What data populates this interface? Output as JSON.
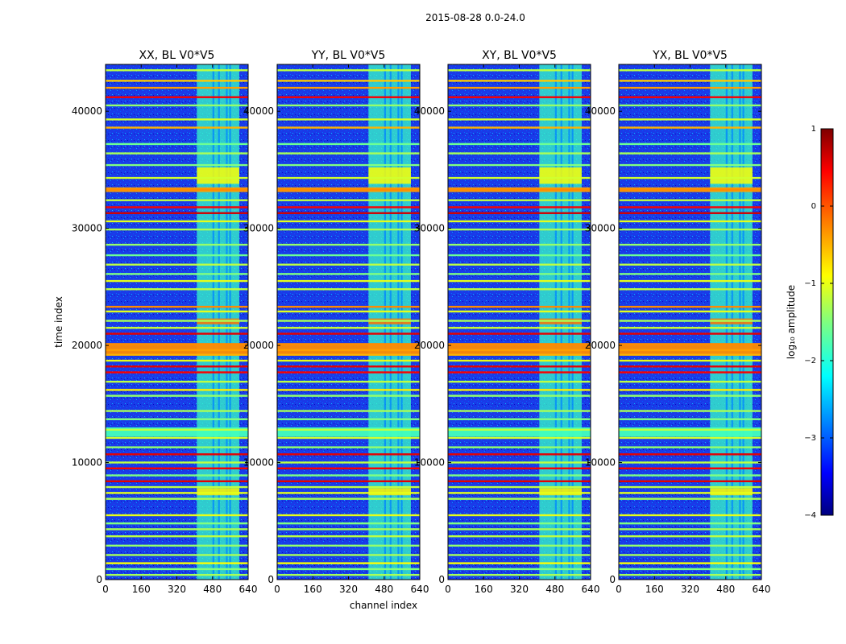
{
  "figure": {
    "suptitle": "2015-08-28 0.0-24.0"
  },
  "chart_data": {
    "type": "heatmap",
    "title": "2015-08-28 0.0-24.0",
    "xlabel": "channel index",
    "ylabel": "time index",
    "xlim": [
      0,
      640
    ],
    "ylim": [
      0,
      44000
    ],
    "xticks": [
      "0",
      "160",
      "320",
      "480",
      "640"
    ],
    "yticks": [
      "0",
      "10000",
      "20000",
      "30000",
      "40000"
    ],
    "panels": [
      {
        "title": "XX, BL V0*V5"
      },
      {
        "title": "YY, BL V0*V5"
      },
      {
        "title": "XY, BL V0*V5"
      },
      {
        "title": "YX, BL V0*V5"
      }
    ],
    "colorbar": {
      "label": "log₁₀ amplitude",
      "range": [
        -4,
        1
      ],
      "ticks": [
        "1",
        "0",
        "−1",
        "−2",
        "−3",
        "−4"
      ],
      "colormap": "jet"
    },
    "background_log_amp": -3.1,
    "rfi_channel_band": [
      410,
      600
    ],
    "rfi_gap_channels": [
      480,
      505,
      540,
      555
    ],
    "flagged_time_rows": [
      {
        "t": 43500,
        "v": -1.2
      },
      {
        "t": 42600,
        "v": -0.6
      },
      {
        "t": 42000,
        "v": -0.4
      },
      {
        "t": 41200,
        "v": 0.4
      },
      {
        "t": 40500,
        "v": -1.4
      },
      {
        "t": 39300,
        "v": -1.1
      },
      {
        "t": 38600,
        "v": -0.5
      },
      {
        "t": 37200,
        "v": -1.6
      },
      {
        "t": 36400,
        "v": -1.3
      },
      {
        "t": 35400,
        "v": -1.5
      },
      {
        "t": 34300,
        "v": -1.1
      },
      {
        "t": 33300,
        "v": -0.3
      },
      {
        "t": 32400,
        "v": -1.2
      },
      {
        "t": 31800,
        "v": 0.4
      },
      {
        "t": 31300,
        "v": 0.6
      },
      {
        "t": 30600,
        "v": -1.0
      },
      {
        "t": 29900,
        "v": -1.3
      },
      {
        "t": 28600,
        "v": -1.4
      },
      {
        "t": 27700,
        "v": -1.6
      },
      {
        "t": 26900,
        "v": -1.2
      },
      {
        "t": 26100,
        "v": -1.5
      },
      {
        "t": 25500,
        "v": -1.0
      },
      {
        "t": 24800,
        "v": -1.2
      },
      {
        "t": 23300,
        "v": -0.3
      },
      {
        "t": 22900,
        "v": -1.0
      },
      {
        "t": 22100,
        "v": -1.3
      },
      {
        "t": 21500,
        "v": -1.1
      },
      {
        "t": 21000,
        "v": 0.5
      },
      {
        "t": 20100,
        "v": -0.3
      },
      {
        "t": 19600,
        "v": -0.4
      },
      {
        "t": 19200,
        "v": -0.5
      },
      {
        "t": 18700,
        "v": -1.0
      },
      {
        "t": 18200,
        "v": 0.5
      },
      {
        "t": 17700,
        "v": 0.4
      },
      {
        "t": 16900,
        "v": -1.2
      },
      {
        "t": 16200,
        "v": -0.8
      },
      {
        "t": 15700,
        "v": -1.4
      },
      {
        "t": 14400,
        "v": -1.3
      },
      {
        "t": 13700,
        "v": -1.5
      },
      {
        "t": 12800,
        "v": -1.2
      },
      {
        "t": 12100,
        "v": -1.1
      },
      {
        "t": 11300,
        "v": -1.4
      },
      {
        "t": 10700,
        "v": 0.5
      },
      {
        "t": 10000,
        "v": -1.2
      },
      {
        "t": 9500,
        "v": 0.4
      },
      {
        "t": 8900,
        "v": -1.5
      },
      {
        "t": 8400,
        "v": 0.5
      },
      {
        "t": 7900,
        "v": -1.2
      },
      {
        "t": 7400,
        "v": -1.0
      },
      {
        "t": 6900,
        "v": -1.3
      },
      {
        "t": 5500,
        "v": -1.0
      },
      {
        "t": 4800,
        "v": -1.5
      },
      {
        "t": 4300,
        "v": -1.3
      },
      {
        "t": 3700,
        "v": -1.2
      },
      {
        "t": 2900,
        "v": -1.4
      },
      {
        "t": 2100,
        "v": -1.3
      },
      {
        "t": 1400,
        "v": -0.9
      },
      {
        "t": 900,
        "v": -1.5
      },
      {
        "t": 400,
        "v": -1.3
      }
    ],
    "wide_flag_bands": [
      {
        "t0": 19200,
        "t1": 20200,
        "v": -0.3
      },
      {
        "t0": 33100,
        "t1": 33500,
        "v": -0.4
      },
      {
        "t0": 12200,
        "t1": 13000,
        "v": -1.8
      }
    ],
    "rfi_bright_blocks": [
      {
        "t0": 21800,
        "t1": 22300,
        "v": -0.2
      },
      {
        "t0": 7200,
        "t1": 7800,
        "v": -0.8
      },
      {
        "t0": 33800,
        "t1": 35200,
        "v": -0.9
      }
    ]
  }
}
